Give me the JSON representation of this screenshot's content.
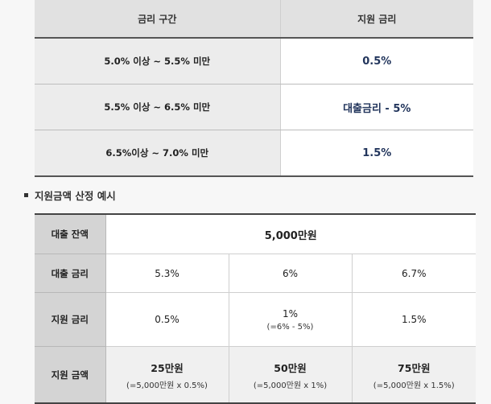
{
  "rate_table": {
    "headers": [
      "금리 구간",
      "지원 금리"
    ],
    "rows": [
      {
        "range": "5.0% 이상 ~ 5.5% 미만",
        "rate": "0.5%"
      },
      {
        "range": "5.5% 이상 ~ 6.5% 미만",
        "rate": "대출금리 - 5%"
      },
      {
        "range": "6.5%이상 ~ 7.0% 미만",
        "rate": "1.5%"
      }
    ]
  },
  "example_section": {
    "title": "지원금액 산정 예시"
  },
  "example_table": {
    "balance_label": "대출 잔액",
    "balance_value": "5,000만원",
    "loan_rate_label": "대출 금리",
    "loan_rates": [
      "5.3%",
      "6%",
      "6.7%"
    ],
    "support_rate_label": "지원 금리",
    "support_rates": [
      {
        "value": "0.5%",
        "note": ""
      },
      {
        "value": "1%",
        "note": "(=6% - 5%)"
      },
      {
        "value": "1.5%",
        "note": ""
      }
    ],
    "support_amount_label": "지원 금액",
    "support_amounts": [
      {
        "value": "25만원",
        "note": "(=5,000만원 x 0.5%)"
      },
      {
        "value": "50만원",
        "note": "(=5,000만원 x 1%)"
      },
      {
        "value": "75만원",
        "note": "(=5,000만원 x 1.5%)"
      }
    ]
  }
}
